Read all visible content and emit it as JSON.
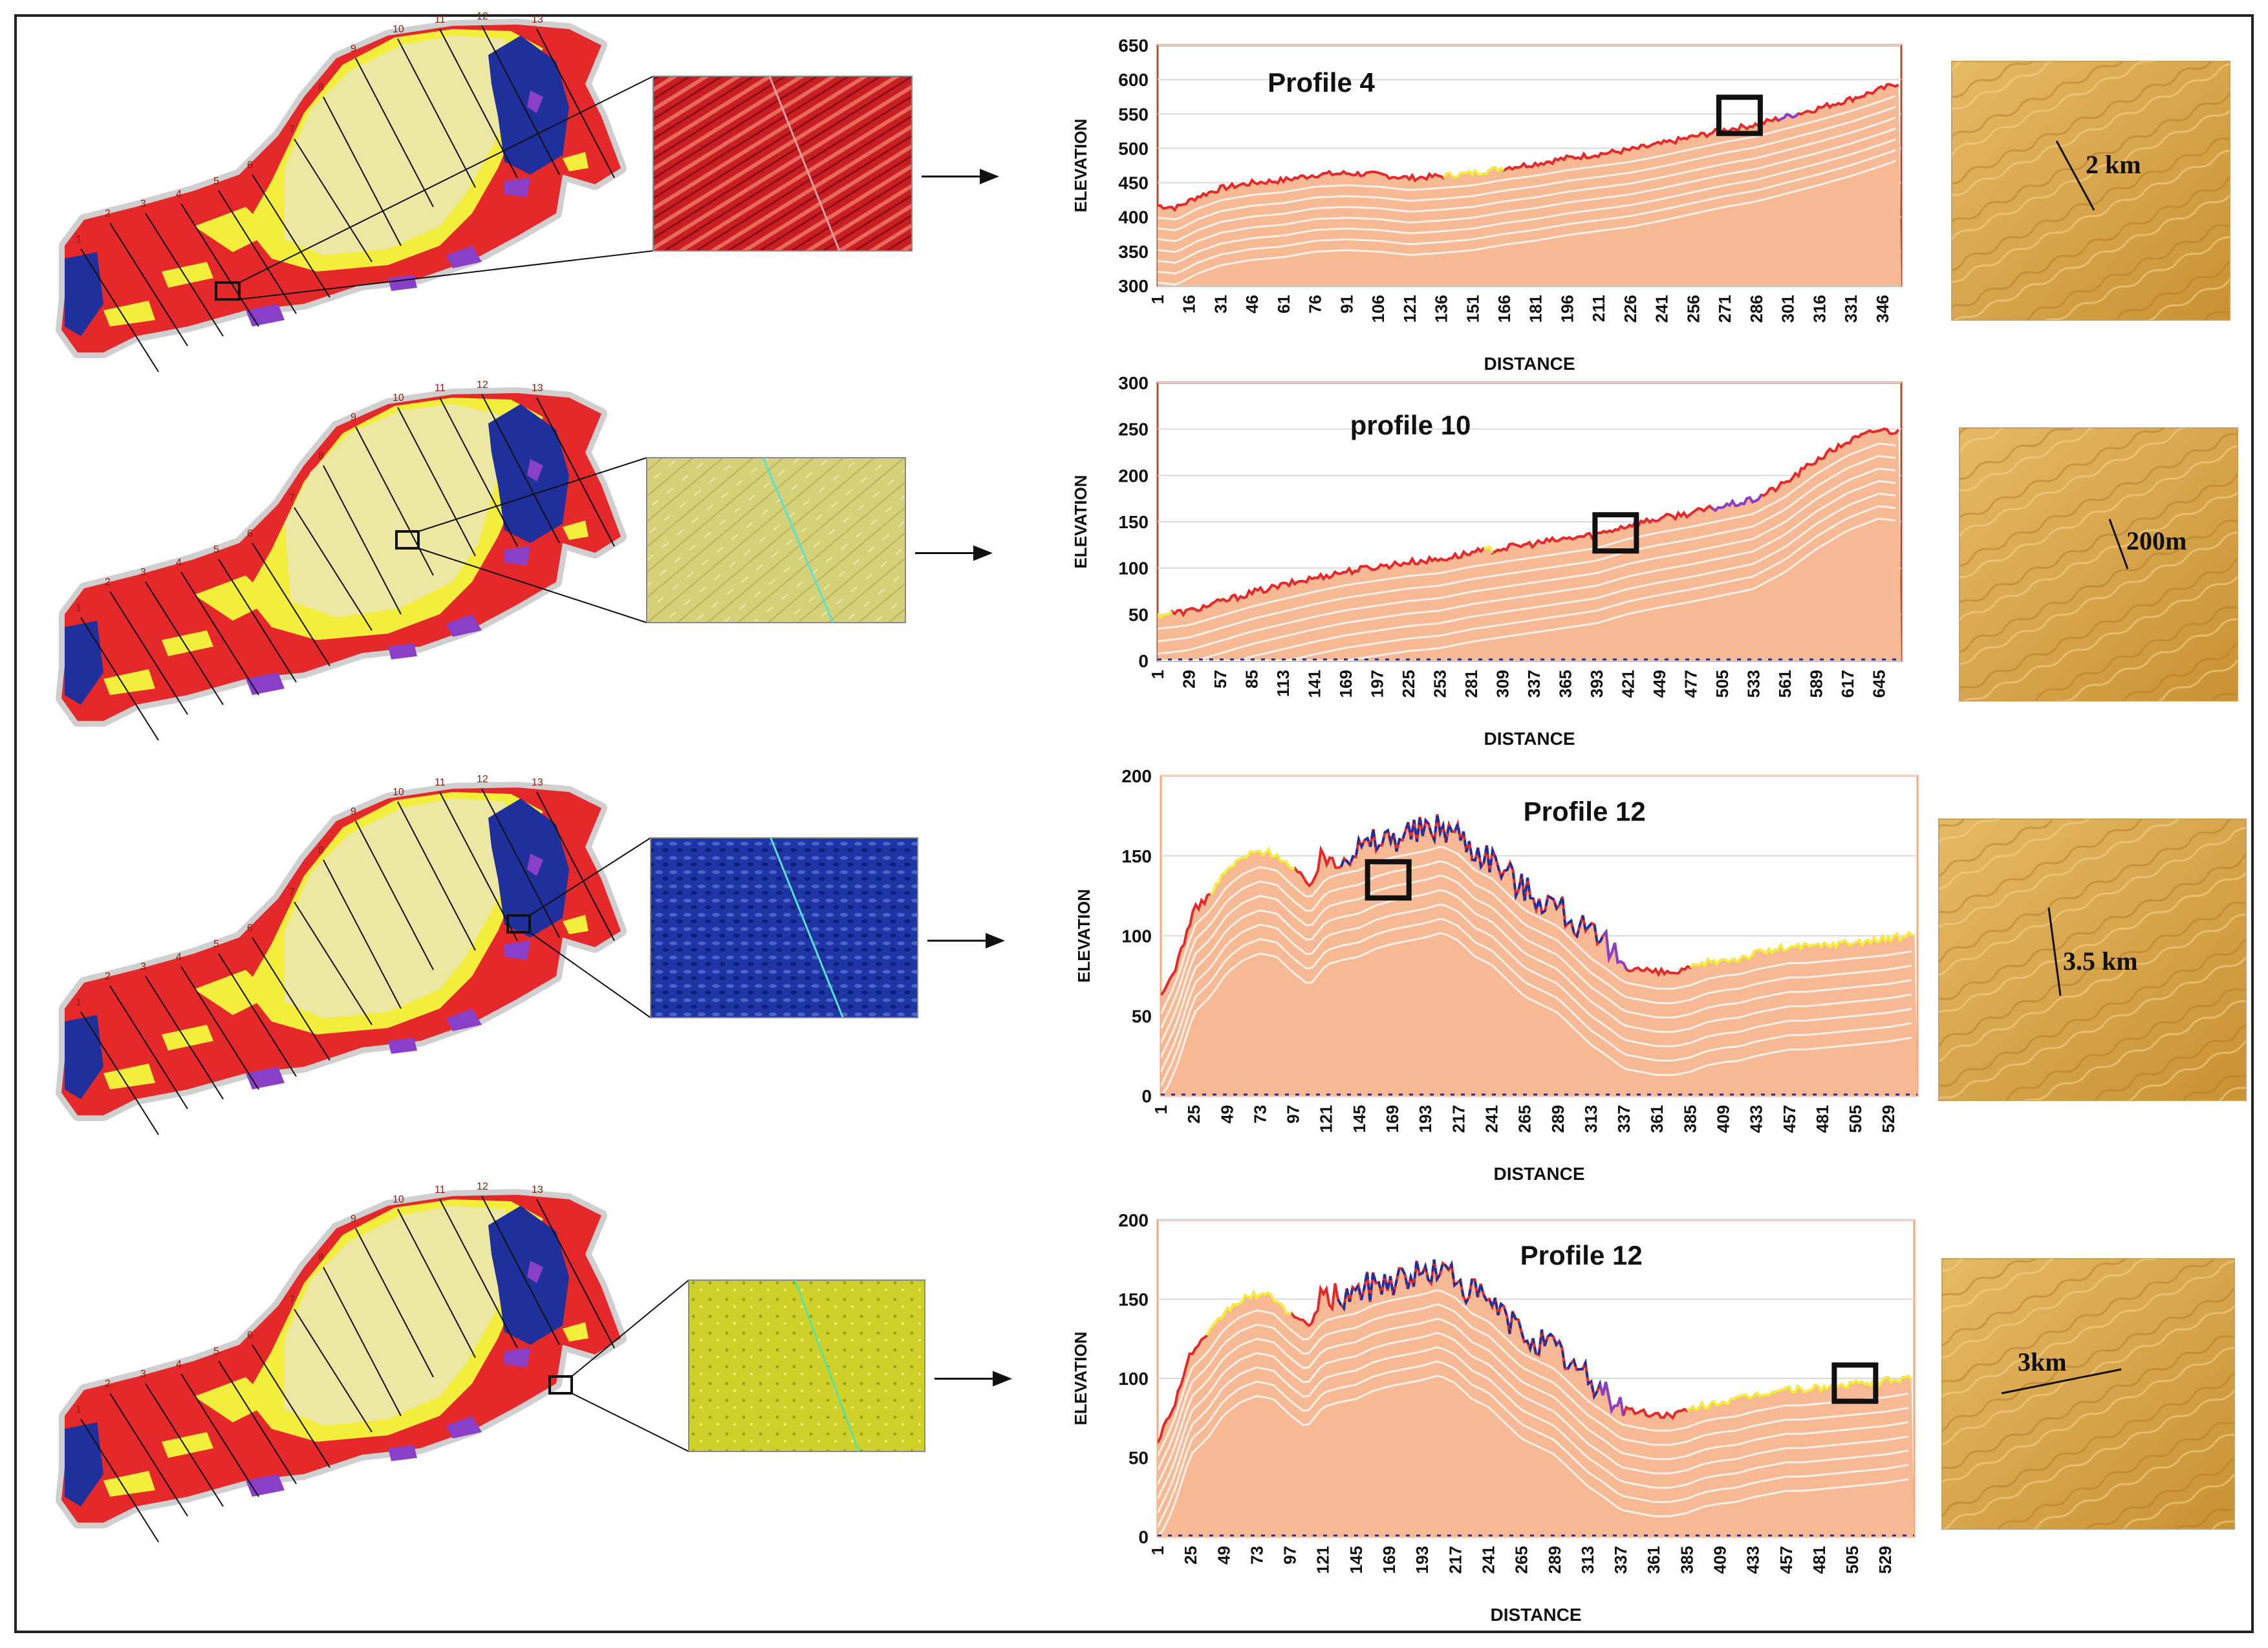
{
  "colors": {
    "red": "#e5282a",
    "yellow": "#f3ee3c",
    "pale_yellow": "#ece7a3",
    "navy": "#1f2f9c",
    "purple": "#8a3fc9",
    "salmon": "#f7b894",
    "panel_border": "#b24a2a",
    "inset_red": "#c81e24",
    "inset_yellow": "#d6d178",
    "inset_blue": "#1f35a6",
    "inset_lime": "#cfd02a",
    "sand": "#d9a84b"
  },
  "map": {
    "profile_labels": [
      "1",
      "2",
      "3",
      "4",
      "5",
      "6",
      "7",
      "8",
      "9",
      "10",
      "11",
      "12",
      "13"
    ]
  },
  "rows": [
    {
      "inset_icon": "dune-texture-red",
      "scale_label": "2 km"
    },
    {
      "inset_icon": "dune-texture-pale",
      "scale_label": "200m"
    },
    {
      "inset_icon": "dune-texture-blue",
      "scale_label": "3.5 km"
    },
    {
      "inset_icon": "dune-texture-lime",
      "scale_label": "3km"
    }
  ],
  "chart_data": [
    {
      "type": "area",
      "title": "Profile 4",
      "xlabel": "DISTANCE",
      "ylabel": "ELEVATION",
      "ylim": [
        300,
        650
      ],
      "yticks": [
        300,
        350,
        400,
        450,
        500,
        550,
        600,
        650
      ],
      "xticks": [
        "1",
        "16",
        "31",
        "46",
        "61",
        "76",
        "91",
        "106",
        "121",
        "136",
        "151",
        "166",
        "181",
        "196",
        "211",
        "226",
        "241",
        "256",
        "271",
        "286",
        "301",
        "316",
        "331",
        "346"
      ],
      "x_range": [
        1,
        355
      ],
      "grid": true,
      "series": [
        {
          "points": [
            [
              1,
              415
            ],
            [
              10,
              412
            ],
            [
              20,
              428
            ],
            [
              31,
              440
            ],
            [
              46,
              448
            ],
            [
              61,
              452
            ],
            [
              76,
              460
            ],
            [
              91,
              462
            ],
            [
              106,
              460
            ],
            [
              121,
              455
            ],
            [
              136,
              458
            ],
            [
              151,
              462
            ],
            [
              166,
              470
            ],
            [
              181,
              476
            ],
            [
              196,
              484
            ],
            [
              211,
              490
            ],
            [
              226,
              496
            ],
            [
              241,
              505
            ],
            [
              256,
              515
            ],
            [
              271,
              525
            ],
            [
              286,
              533
            ],
            [
              301,
              545
            ],
            [
              316,
              557
            ],
            [
              331,
              570
            ],
            [
              346,
              585
            ],
            [
              355,
              595
            ]
          ]
        }
      ]
    },
    {
      "type": "area",
      "title": "profile 10",
      "xlabel": "DISTANCE",
      "ylabel": "ELEVATION",
      "ylim": [
        0,
        300
      ],
      "yticks": [
        0,
        50,
        100,
        150,
        200,
        250,
        300
      ],
      "xticks": [
        "1",
        "29",
        "57",
        "85",
        "113",
        "141",
        "169",
        "197",
        "225",
        "253",
        "281",
        "309",
        "337",
        "365",
        "393",
        "421",
        "449",
        "477",
        "505",
        "533",
        "561",
        "589",
        "617",
        "645"
      ],
      "x_range": [
        1,
        665
      ],
      "grid": true,
      "series": [
        {
          "points": [
            [
              1,
              48
            ],
            [
              29,
              52
            ],
            [
              57,
              62
            ],
            [
              85,
              72
            ],
            [
              113,
              80
            ],
            [
              141,
              88
            ],
            [
              169,
              95
            ],
            [
              197,
              100
            ],
            [
              225,
              105
            ],
            [
              253,
              108
            ],
            [
              281,
              115
            ],
            [
              309,
              120
            ],
            [
              337,
              125
            ],
            [
              365,
              130
            ],
            [
              393,
              135
            ],
            [
              421,
              145
            ],
            [
              449,
              152
            ],
            [
              477,
              158
            ],
            [
              505,
              165
            ],
            [
              533,
              172
            ],
            [
              561,
              190
            ],
            [
              589,
              215
            ],
            [
              617,
              235
            ],
            [
              645,
              248
            ],
            [
              665,
              245
            ]
          ]
        }
      ]
    },
    {
      "type": "area",
      "title": "Profile 12",
      "xlabel": "DISTANCE",
      "ylabel": "ELEVATION",
      "ylim": [
        0,
        200
      ],
      "yticks": [
        0,
        50,
        100,
        150,
        200
      ],
      "xticks": [
        "1",
        "25",
        "49",
        "73",
        "97",
        "121",
        "145",
        "169",
        "193",
        "217",
        "241",
        "265",
        "289",
        "313",
        "337",
        "361",
        "385",
        "409",
        "433",
        "457",
        "481",
        "505",
        "529"
      ],
      "x_range": [
        1,
        550
      ],
      "grid": true,
      "series": [
        {
          "points": [
            [
              1,
              60
            ],
            [
              12,
              80
            ],
            [
              25,
              115
            ],
            [
              37,
              125
            ],
            [
              49,
              140
            ],
            [
              61,
              148
            ],
            [
              73,
              152
            ],
            [
              85,
              150
            ],
            [
              97,
              140
            ],
            [
              109,
              132
            ],
            [
              121,
              145
            ],
            [
              133,
              148
            ],
            [
              145,
              150
            ],
            [
              157,
              155
            ],
            [
              169,
              158
            ],
            [
              181,
              160
            ],
            [
              193,
              162
            ],
            [
              205,
              165
            ],
            [
              217,
              160
            ],
            [
              229,
              150
            ],
            [
              241,
              145
            ],
            [
              253,
              135
            ],
            [
              265,
              125
            ],
            [
              277,
              120
            ],
            [
              289,
              115
            ],
            [
              301,
              105
            ],
            [
              313,
              95
            ],
            [
              325,
              88
            ],
            [
              337,
              80
            ],
            [
              349,
              78
            ],
            [
              361,
              76
            ],
            [
              373,
              76
            ],
            [
              385,
              78
            ],
            [
              397,
              82
            ],
            [
              409,
              84
            ],
            [
              421,
              85
            ],
            [
              433,
              88
            ],
            [
              445,
              90
            ],
            [
              457,
              92
            ],
            [
              469,
              92
            ],
            [
              481,
              93
            ],
            [
              493,
              94
            ],
            [
              505,
              95
            ],
            [
              517,
              96
            ],
            [
              529,
              97
            ],
            [
              550,
              100
            ]
          ]
        }
      ]
    },
    {
      "type": "area",
      "title": "Profile 12",
      "xlabel": "DISTANCE",
      "ylabel": "ELEVATION",
      "ylim": [
        0,
        200
      ],
      "yticks": [
        0,
        50,
        100,
        150,
        200
      ],
      "xticks": [
        "1",
        "25",
        "49",
        "73",
        "97",
        "121",
        "145",
        "169",
        "193",
        "217",
        "241",
        "265",
        "289",
        "313",
        "337",
        "361",
        "385",
        "409",
        "433",
        "457",
        "481",
        "505",
        "529"
      ],
      "x_range": [
        1,
        550
      ],
      "grid": true,
      "series": [
        {
          "points": [
            [
              1,
              60
            ],
            [
              12,
              80
            ],
            [
              25,
              115
            ],
            [
              37,
              125
            ],
            [
              49,
              140
            ],
            [
              61,
              148
            ],
            [
              73,
              152
            ],
            [
              85,
              150
            ],
            [
              97,
              140
            ],
            [
              109,
              132
            ],
            [
              121,
              145
            ],
            [
              133,
              148
            ],
            [
              145,
              150
            ],
            [
              157,
              155
            ],
            [
              169,
              158
            ],
            [
              181,
              160
            ],
            [
              193,
              162
            ],
            [
              205,
              165
            ],
            [
              217,
              160
            ],
            [
              229,
              150
            ],
            [
              241,
              145
            ],
            [
              253,
              135
            ],
            [
              265,
              125
            ],
            [
              277,
              120
            ],
            [
              289,
              115
            ],
            [
              301,
              105
            ],
            [
              313,
              95
            ],
            [
              325,
              88
            ],
            [
              337,
              80
            ],
            [
              349,
              78
            ],
            [
              361,
              76
            ],
            [
              373,
              76
            ],
            [
              385,
              78
            ],
            [
              397,
              82
            ],
            [
              409,
              84
            ],
            [
              421,
              85
            ],
            [
              433,
              88
            ],
            [
              445,
              90
            ],
            [
              457,
              92
            ],
            [
              469,
              92
            ],
            [
              481,
              93
            ],
            [
              493,
              94
            ],
            [
              505,
              95
            ],
            [
              517,
              96
            ],
            [
              529,
              97
            ],
            [
              550,
              100
            ]
          ]
        }
      ]
    }
  ]
}
